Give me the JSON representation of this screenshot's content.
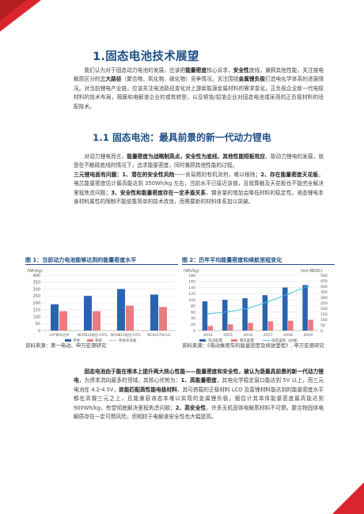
{
  "colors": {
    "brand_blue": "#1e4f86",
    "accent_red": "#d9262c",
    "bar_blue": "#2b64ae",
    "bar_pink": "#ea7b7f",
    "line_cyan": "#49c3e6"
  },
  "section": {
    "title": "1.固态电池技术展望",
    "paragraphs": [
      "我们认为对于固态动力电池的发展，应该把",
      "能量密度",
      "核心诉求，",
      "安全性",
      "底线，兼顾其他性能，关注按电解质区分的",
      "三大路径",
      "（聚合物、氧化物、硫化物）竞争情况，关注围绕",
      "金属锂负极",
      "打造电化学体系的进展情况。对当前锂电产业链，应该关注电池路径变化对上游新能源金属材料的需求变化，正负极企业新一代电极材料的技术布局，隔膜和电解液企业的或有转型，以及铜箔/铝箔企业对固态电池或采用的正负极材料的适配技术。"
    ]
  },
  "subsection": {
    "title": "1.1  固态电池：最具前景的新一代动力锂电",
    "p2_parts": [
      "对动力锂电而言，",
      "能量密度为战略制高点，安全性为底线，其他性能短板效应",
      "，故动力锂电的发展，就是在不触碰底线的情况下，追求能量密度，同时兼顾其他性能的过程。",
      "三元锂电面有问题：1、潜在的安全性风险",
      "——含易燃的有机溶剂，难以根除；",
      "2、存在能量密度天花板",
      "，电芯能量密度估计最高能达到 350Wh/kg 左右，当前水平已接近该值，且就算触及天花板也不能完全解决里程焦虑问题；",
      "3、安全性和能量密度存在一定矛盾关系",
      "，镍含量的增加会降低材料的稳定性。液态锂电本身材料属性的限制不能依靠简单的技术改良，而需要新的材料体系加以突破。"
    ],
    "p3_parts": [
      "固态电池由于能在根本上提升两大核心性能——能量密度和安全性，被认为是最具前景的新一代动力锂电",
      "，为资本流向最多的领域。其核心优势为：",
      "1、高能量密度",
      "，其电化学稳定窗口能达到 5V 以上，而三元电池在 4.2-4.5V，",
      "故能匹配高性能电极材料",
      "，其可搭载的正极材料 LCO 及富锂材料能达到的能量密度水平都在高镍三元之上，且能兼容液态本难以实现的金属锂负极，据估计其单体能量密度最高能达到 900Wh/kg，有望彻底解决里程焦虑问题；",
      "2、高安全性",
      "，许多无机固体电解质材料不可燃，聚合物固体电解质存在一定可燃风险，但相较于电解液安全性也大幅提高。"
    ]
  },
  "figure1": {
    "title": "图 1：当前动力电池能够达到的能量密度水平",
    "source": "资料来源：第一电动、申万宏源研究"
  },
  "figure2": {
    "title": "图 2：历年平均能量密度和续航里程变化",
    "source": "资料来源：《电动乘用车的能量密度及续驶里程》, 申万宏源研究"
  },
  "chart_data": [
    {
      "type": "bar",
      "title": "图 1：当前动力电池能够达到的能量密度水平",
      "ylabel": "(Wh/kg)",
      "ylim": [
        0,
        400
      ],
      "yticks": [
        0,
        50,
        100,
        150,
        200,
        250,
        300,
        350,
        400
      ],
      "categories": [
        "LFP-BYD刀片",
        "NCM523软包-CATL",
        "NCM811软包-CATL",
        "NCA21700-LG"
      ],
      "series": [
        {
          "name": "单体",
          "color": "#2b64ae",
          "values": [
            190,
            250,
            300,
            260
          ]
        },
        {
          "name": "系统",
          "color": "#ea7b7f",
          "values": [
            140,
            140,
            180,
            170
          ]
        }
      ],
      "extra_legend": "单体天花板",
      "legend_position": "bottom"
    },
    {
      "type": "bar",
      "title": "图 2：历年平均能量密度和续航里程变化",
      "ylabel": "(Wh/kg)",
      "y2label": "(km-NEDC)",
      "ylim": [
        0,
        180
      ],
      "yticks": [
        0,
        20,
        40,
        60,
        80,
        100,
        120,
        140,
        160,
        180
      ],
      "y2lim": [
        0,
        500
      ],
      "y2ticks": [
        0,
        50,
        100,
        150,
        200,
        250,
        300,
        350,
        400,
        450,
        500
      ],
      "categories": [
        "2014",
        "2015",
        "2016",
        "2017",
        "2018",
        "2019"
      ],
      "series": [
        {
          "name": "电池能量",
          "color": "#2b64ae",
          "kind": "bar",
          "axis": "left",
          "values": [
            95,
            100,
            105,
            115,
            140,
            148
          ]
        },
        {
          "name": "整车能量",
          "color": "#ea7b7f",
          "kind": "bar",
          "axis": "left",
          "values": [
            15,
            20,
            25,
            30,
            32,
            35
          ]
        },
        {
          "name": "续航里程（右轴）",
          "color": "#49c3e6",
          "kind": "line",
          "axis": "right",
          "values": [
            150,
            170,
            200,
            260,
            330,
            400
          ]
        }
      ],
      "legend_position": "bottom"
    }
  ]
}
